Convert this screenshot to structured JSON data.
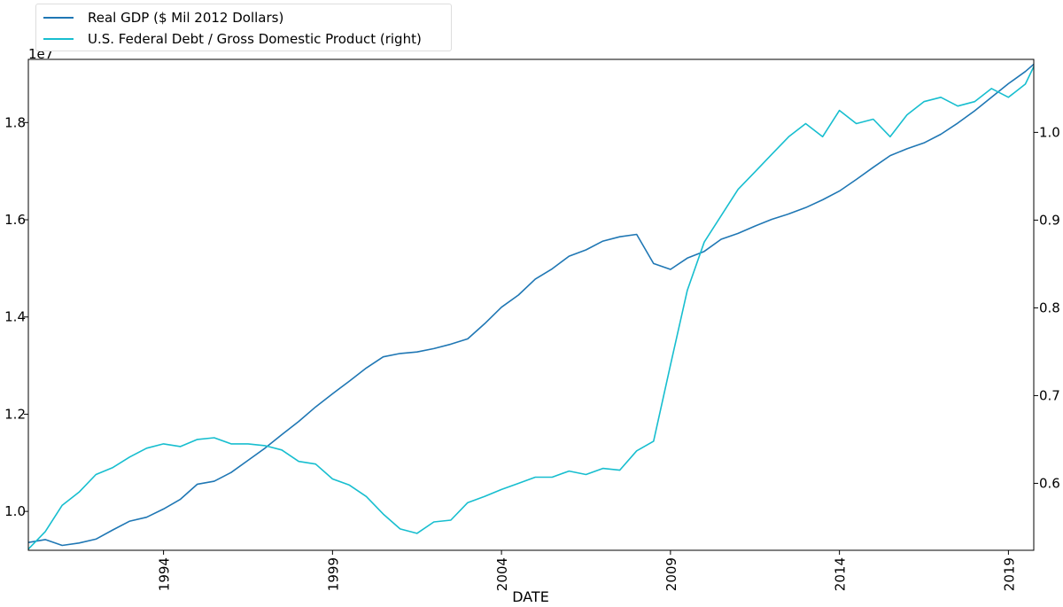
{
  "chart_data": {
    "type": "line",
    "xlabel": "DATE",
    "multiplier_label": "1e7",
    "x_ticks": [
      "1994",
      "1999",
      "2004",
      "2009",
      "2014",
      "2019"
    ],
    "x_tick_values": [
      1994,
      1999,
      2004,
      2009,
      2014,
      2019
    ],
    "xlim": [
      1990.0,
      2019.75
    ],
    "left_axis": {
      "ylim": [
        9200000,
        19300000
      ],
      "ticks": [
        10000000,
        12000000,
        14000000,
        16000000,
        18000000
      ],
      "tick_labels": [
        "1.0",
        "1.2",
        "1.4",
        "1.6",
        "1.8"
      ]
    },
    "right_axis": {
      "ylim": [
        0.5237,
        1.0832
      ],
      "ticks": [
        0.6,
        0.7,
        0.8,
        0.9,
        1.0
      ],
      "tick_labels": [
        "0.6",
        "0.7",
        "0.8",
        "0.9",
        "1.0"
      ]
    },
    "legend": {
      "position": "top-left"
    },
    "series": [
      {
        "name": "Real GDP ($ Mil 2012 Dollars)",
        "axis": "left",
        "color": "#1f77b4",
        "x": [
          1990.0,
          1990.5,
          1991.0,
          1991.5,
          1992.0,
          1992.5,
          1993.0,
          1993.5,
          1994.0,
          1994.5,
          1995.0,
          1995.5,
          1996.0,
          1996.5,
          1997.0,
          1997.5,
          1998.0,
          1998.5,
          1999.0,
          1999.5,
          2000.0,
          2000.5,
          2001.0,
          2001.5,
          2002.0,
          2002.5,
          2003.0,
          2003.5,
          2004.0,
          2004.5,
          2005.0,
          2005.5,
          2006.0,
          2006.5,
          2007.0,
          2007.5,
          2008.0,
          2008.5,
          2009.0,
          2009.5,
          2010.0,
          2010.5,
          2011.0,
          2011.5,
          2012.0,
          2012.5,
          2013.0,
          2013.5,
          2014.0,
          2014.5,
          2015.0,
          2015.5,
          2016.0,
          2016.5,
          2017.0,
          2017.5,
          2018.0,
          2018.5,
          2019.0,
          2019.5,
          2019.75
        ],
        "values": [
          9360000,
          9420000,
          9300000,
          9350000,
          9430000,
          9620000,
          9800000,
          9880000,
          10050000,
          10250000,
          10560000,
          10620000,
          10800000,
          11050000,
          11300000,
          11580000,
          11850000,
          12150000,
          12420000,
          12680000,
          12950000,
          13180000,
          13250000,
          13280000,
          13350000,
          13440000,
          13550000,
          13860000,
          14200000,
          14450000,
          14780000,
          14990000,
          15250000,
          15380000,
          15560000,
          15650000,
          15700000,
          15100000,
          14980000,
          15210000,
          15350000,
          15600000,
          15720000,
          15870000,
          16010000,
          16120000,
          16250000,
          16410000,
          16590000,
          16830000,
          17080000,
          17320000,
          17460000,
          17580000,
          17760000,
          17990000,
          18240000,
          18520000,
          18800000,
          19050000,
          19200000
        ]
      },
      {
        "name": "U.S. Federal Debt / Gross Domestic Product (right)",
        "axis": "right",
        "color": "#17becf",
        "x": [
          1990.0,
          1990.5,
          1991.0,
          1991.5,
          1992.0,
          1992.5,
          1993.0,
          1993.5,
          1994.0,
          1994.5,
          1995.0,
          1995.5,
          1996.0,
          1996.5,
          1997.0,
          1997.5,
          1998.0,
          1998.5,
          1999.0,
          1999.5,
          2000.0,
          2000.5,
          2001.0,
          2001.5,
          2002.0,
          2002.5,
          2003.0,
          2003.5,
          2004.0,
          2004.5,
          2005.0,
          2005.5,
          2006.0,
          2006.5,
          2007.0,
          2007.5,
          2008.0,
          2008.5,
          2009.0,
          2009.5,
          2010.0,
          2010.5,
          2011.0,
          2011.5,
          2012.0,
          2012.5,
          2013.0,
          2013.5,
          2014.0,
          2014.5,
          2015.0,
          2015.5,
          2016.0,
          2016.5,
          2017.0,
          2017.5,
          2018.0,
          2018.5,
          2019.0,
          2019.5,
          2019.75
        ],
        "values": [
          0.525,
          0.545,
          0.575,
          0.59,
          0.61,
          0.618,
          0.63,
          0.64,
          0.645,
          0.642,
          0.65,
          0.652,
          0.645,
          0.645,
          0.643,
          0.638,
          0.625,
          0.622,
          0.605,
          0.598,
          0.585,
          0.565,
          0.548,
          0.543,
          0.556,
          0.558,
          0.578,
          0.585,
          0.593,
          0.6,
          0.607,
          0.607,
          0.614,
          0.61,
          0.617,
          0.615,
          0.637,
          0.648,
          0.735,
          0.82,
          0.875,
          0.905,
          0.935,
          0.955,
          0.975,
          0.995,
          1.01,
          0.995,
          1.025,
          1.01,
          1.015,
          0.995,
          1.02,
          1.035,
          1.04,
          1.03,
          1.035,
          1.05,
          1.04,
          1.055,
          1.075
        ]
      }
    ]
  }
}
